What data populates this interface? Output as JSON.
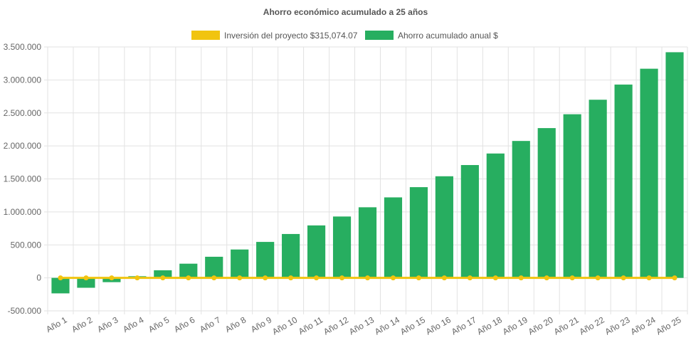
{
  "chart_data": {
    "type": "bar",
    "title": "Ahorro económico acumulado a 25 años",
    "categories": [
      "Año 1",
      "Año 2",
      "Año 3",
      "Año 4",
      "Año 5",
      "Año 6",
      "Año 7",
      "Año 8",
      "Año 9",
      "Año 10",
      "Año 11",
      "Año 12",
      "Año 13",
      "Año 14",
      "Año 15",
      "Año 16",
      "Año 17",
      "Año 18",
      "Año 19",
      "Año 20",
      "Año 21",
      "Año 22",
      "Año 23",
      "Año 24",
      "Año 25"
    ],
    "series": [
      {
        "name": "Inversión del proyecto $315,074.07",
        "type": "line",
        "color": "#f1c40f",
        "values": [
          0,
          0,
          0,
          0,
          0,
          0,
          0,
          0,
          0,
          0,
          0,
          0,
          0,
          0,
          0,
          0,
          0,
          0,
          0,
          0,
          0,
          0,
          0,
          0,
          0
        ]
      },
      {
        "name": "Ahorro acumulado anual $",
        "type": "bar",
        "color": "#27ae60",
        "values": [
          -235000,
          -150000,
          -65000,
          25000,
          115000,
          215000,
          320000,
          430000,
          545000,
          665000,
          795000,
          930000,
          1070000,
          1220000,
          1375000,
          1540000,
          1710000,
          1885000,
          2075000,
          2270000,
          2480000,
          2700000,
          2930000,
          3170000,
          3420000
        ]
      }
    ],
    "ylim": [
      -500000,
      3500000
    ],
    "yticks": [
      "3.500.000",
      "3.000.000",
      "2.500.000",
      "2.000.000",
      "1.500.000",
      "1.000.000",
      "500.000",
      "0",
      "-500.000"
    ],
    "ytick_values": [
      3500000,
      3000000,
      2500000,
      2000000,
      1500000,
      1000000,
      500000,
      0,
      -500000
    ],
    "grid": true,
    "legend_position": "top"
  }
}
